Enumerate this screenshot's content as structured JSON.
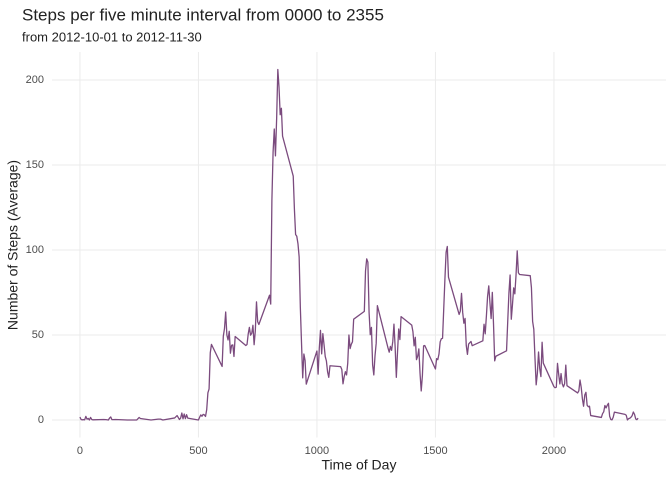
{
  "chart_data": {
    "type": "line",
    "title": "Steps per five minute interval from 0000 to 2355",
    "subtitle": "from 2012-10-01 to 2012-11-30",
    "x_label": "Time of Day",
    "y_label": "Number of Steps (Average)",
    "color": "#7b4b7e",
    "grid": true,
    "xlim": [
      -117.75,
      2472.75
    ],
    "ylim": [
      -10.3,
      216.5
    ],
    "xticks": [
      0,
      500,
      1000,
      1500,
      2000
    ],
    "yticks": [
      0,
      50,
      100,
      150,
      200
    ],
    "x": [
      0,
      5,
      10,
      15,
      20,
      25,
      30,
      35,
      40,
      45,
      50,
      55,
      100,
      110,
      120,
      125,
      130,
      135,
      140,
      150,
      200,
      230,
      240,
      250,
      255,
      300,
      330,
      340,
      350,
      400,
      410,
      420,
      425,
      430,
      435,
      440,
      445,
      450,
      455,
      500,
      505,
      510,
      515,
      520,
      525,
      530,
      535,
      540,
      545,
      550,
      555,
      600,
      605,
      610,
      615,
      620,
      625,
      630,
      635,
      640,
      645,
      650,
      655,
      700,
      705,
      710,
      715,
      720,
      725,
      730,
      735,
      740,
      745,
      750,
      755,
      800,
      805,
      810,
      815,
      820,
      825,
      830,
      835,
      840,
      845,
      850,
      855,
      900,
      905,
      910,
      915,
      920,
      925,
      930,
      935,
      940,
      945,
      950,
      955,
      1000,
      1005,
      1010,
      1015,
      1020,
      1025,
      1030,
      1035,
      1040,
      1045,
      1050,
      1055,
      1100,
      1105,
      1110,
      1115,
      1120,
      1125,
      1130,
      1135,
      1140,
      1145,
      1150,
      1155,
      1200,
      1205,
      1210,
      1215,
      1220,
      1225,
      1230,
      1235,
      1240,
      1245,
      1250,
      1255,
      1300,
      1305,
      1310,
      1315,
      1320,
      1325,
      1330,
      1335,
      1340,
      1345,
      1350,
      1355,
      1400,
      1405,
      1410,
      1415,
      1420,
      1425,
      1430,
      1435,
      1440,
      1445,
      1450,
      1455,
      1500,
      1505,
      1510,
      1515,
      1520,
      1525,
      1530,
      1535,
      1540,
      1545,
      1550,
      1555,
      1600,
      1605,
      1610,
      1615,
      1620,
      1625,
      1630,
      1635,
      1640,
      1645,
      1650,
      1655,
      1700,
      1705,
      1710,
      1715,
      1720,
      1725,
      1730,
      1735,
      1740,
      1745,
      1750,
      1755,
      1800,
      1805,
      1810,
      1815,
      1820,
      1825,
      1830,
      1835,
      1840,
      1845,
      1850,
      1855,
      1900,
      1905,
      1910,
      1915,
      1920,
      1925,
      1930,
      1935,
      1940,
      1945,
      1950,
      1955,
      2000,
      2005,
      2010,
      2015,
      2020,
      2025,
      2030,
      2035,
      2040,
      2045,
      2050,
      2055,
      2100,
      2105,
      2110,
      2115,
      2120,
      2125,
      2130,
      2135,
      2140,
      2145,
      2150,
      2155,
      2200,
      2205,
      2210,
      2215,
      2220,
      2225,
      2230,
      2235,
      2240,
      2245,
      2250,
      2255,
      2300,
      2305,
      2310,
      2315,
      2320,
      2325,
      2330,
      2335,
      2340,
      2345,
      2350,
      2355
    ],
    "values": [
      1.7,
      0.3,
      0.1,
      0.2,
      0.1,
      2.1,
      0.5,
      0.9,
      0,
      1.5,
      0.3,
      0.1,
      0.3,
      0.2,
      0,
      1.1,
      1.8,
      0.2,
      0.2,
      0.3,
      0,
      0,
      0,
      1.5,
      0.9,
      0,
      0.5,
      0.5,
      0,
      1.2,
      2.6,
      0.3,
      1.1,
      4.1,
      0.7,
      3.5,
      0.8,
      3.1,
      1.1,
      0,
      1.6,
      3.0,
      2.2,
      3.3,
      3.0,
      2.1,
      6.1,
      16,
      18.3,
      39.5,
      44.5,
      31.5,
      49.3,
      53.8,
      63.5,
      50,
      47.1,
      52.2,
      39.3,
      44,
      44.2,
      37.4,
      49.1,
      43.8,
      44.4,
      50.5,
      54.5,
      49.9,
      51,
      55.7,
      44.3,
      52.3,
      69.5,
      57.8,
      56.2,
      73.4,
      68.2,
      129.4,
      157.5,
      171.2,
      155.4,
      177.3,
      206.2,
      195.9,
      179.6,
      183.4,
      167,
      143.5,
      124,
      109.1,
      108.1,
      103.7,
      95.9,
      66.2,
      45.2,
      24.8,
      38.8,
      35,
      21.1,
      40.6,
      27,
      42.4,
      52.7,
      38.9,
      50.8,
      44.3,
      37.4,
      34.7,
      28.3,
      25.1,
      31.9,
      31.4,
      29.7,
      21.3,
      25.5,
      28.4,
      26.5,
      33.4,
      50,
      42,
      44.6,
      46,
      59.3,
      63.9,
      87.7,
      94.8,
      92.8,
      63.4,
      50.2,
      54.5,
      32.4,
      26.5,
      37.7,
      45.1,
      67.3,
      42.3,
      39.9,
      43.3,
      41,
      46.2,
      56.4,
      42.8,
      25.1,
      40,
      53.5,
      47.3,
      60.8,
      55.8,
      52,
      43.6,
      48.7,
      35.5,
      37.5,
      41.8,
      27.5,
      17.1,
      26.1,
      43.6,
      43.8,
      30,
      36.1,
      35.5,
      38.8,
      46,
      47.8,
      48.1,
      65.3,
      82.9,
      98.7,
      102.1,
      84,
      62.1,
      64.1,
      74.5,
      63.2,
      56.9,
      59.8,
      43.9,
      38.6,
      44.7,
      45.5,
      46.2,
      43.7,
      46.6,
      56.3,
      50.7,
      61.2,
      72.7,
      78.9,
      68.9,
      59.7,
      75.1,
      56.5,
      34.8,
      37.5,
      40.7,
      58,
      74.7,
      85.3,
      59.3,
      67.8,
      77.7,
      74.2,
      85.3,
      99.5,
      86.6,
      85.6,
      84.9,
      77.8,
      58,
      53.4,
      36.3,
      20.7,
      27.4,
      40,
      30.2,
      25.5,
      45.7,
      33.5,
      19.6,
      19,
      19.3,
      33.3,
      26.8,
      21.2,
      27.3,
      21.3,
      19.5,
      21.3,
      32.3,
      20.2,
      15.9,
      17.2,
      23.5,
      19.2,
      12.5,
      8.1,
      14.7,
      16.3,
      8.7,
      7.8,
      8.1,
      2.6,
      1.5,
      3.7,
      4.8,
      8.5,
      7.1,
      8.7,
      9.8,
      2.2,
      0.3,
      0.1,
      1.6,
      4.6,
      3.3,
      2.8,
      0,
      0.8,
      1,
      1.6,
      2.6,
      4.7,
      3.3,
      0.6,
      0.2,
      1.1
    ]
  }
}
